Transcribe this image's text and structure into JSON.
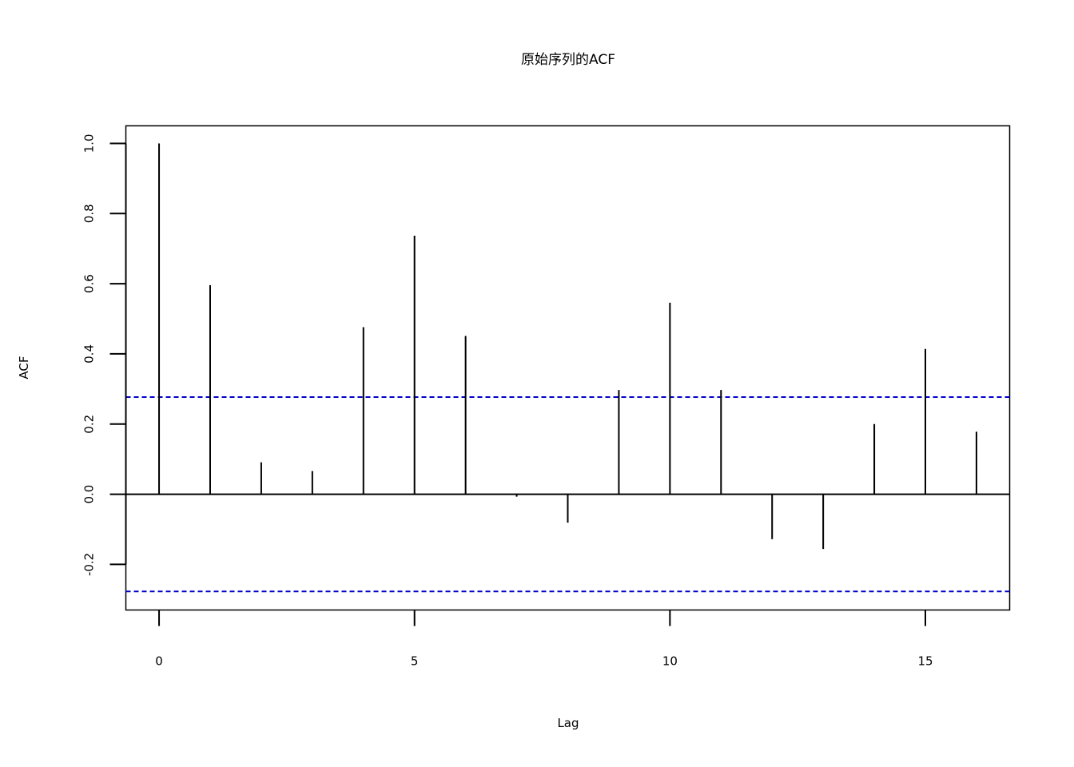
{
  "chart_data": {
    "type": "bar",
    "title": "原始序列的ACF",
    "xlabel": "Lag",
    "ylabel": "ACF",
    "x": [
      0,
      1,
      2,
      3,
      4,
      5,
      6,
      7,
      8,
      9,
      10,
      11,
      12,
      13,
      14,
      15,
      16
    ],
    "values": [
      1.0,
      0.596,
      0.091,
      0.066,
      0.476,
      0.737,
      0.451,
      -0.007,
      -0.081,
      0.297,
      0.546,
      0.297,
      -0.128,
      -0.156,
      0.2,
      0.414,
      0.178
    ],
    "xlim": [
      -0.65,
      16.65
    ],
    "ylim": [
      -0.33,
      1.05
    ],
    "x_ticks": [
      0,
      5,
      10,
      15
    ],
    "x_tick_labels": [
      "0",
      "5",
      "10",
      "15"
    ],
    "y_ticks": [
      -0.2,
      0.0,
      0.2,
      0.4,
      0.6,
      0.8,
      1.0
    ],
    "y_tick_labels": [
      "-0.2",
      "0.0",
      "0.2",
      "0.4",
      "0.6",
      "0.8",
      "1.0"
    ],
    "confidence_bounds": [
      0.277,
      -0.277
    ],
    "zero_line": 0,
    "grid": false,
    "colors": {
      "bars": "#000000",
      "confidence": "#0000cc",
      "axes": "#000000"
    }
  }
}
